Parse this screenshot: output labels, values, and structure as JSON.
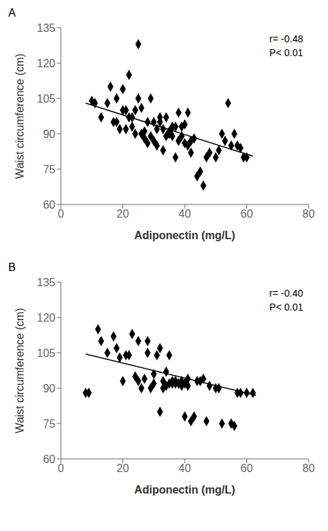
{
  "chart_data": [
    {
      "type": "scatter",
      "title": "A",
      "x_label": "Adiponectin (mg/L)",
      "y_label": "Waist circumference (cm)",
      "annotations": [
        "r= -0.48",
        "P< 0.01"
      ],
      "series": [
        {
          "type": "scatter",
          "marker": "diamond",
          "color": "#000000",
          "x": [
            10,
            11,
            13,
            15,
            16,
            17,
            18,
            18,
            19,
            20,
            20,
            21,
            21,
            22,
            22,
            23,
            23,
            24,
            24,
            25,
            25,
            26,
            26,
            27,
            27,
            28,
            28,
            29,
            29,
            30,
            30,
            31,
            31,
            32,
            32,
            33,
            33,
            34,
            34,
            35,
            35,
            36,
            36,
            37,
            37,
            38,
            38,
            39,
            39,
            40,
            40,
            41,
            41,
            42,
            42,
            43,
            44,
            45,
            46,
            47,
            48,
            50,
            51,
            52,
            53,
            54,
            55,
            56,
            57,
            58,
            59,
            60
          ],
          "values": [
            104,
            103,
            97,
            103,
            110,
            95,
            95,
            105,
            92,
            109,
            100,
            92,
            100,
            97,
            115,
            97,
            93,
            100,
            90,
            128,
            105,
            90,
            101,
            91,
            88,
            95,
            86,
            89,
            105,
            87,
            95,
            92,
            85,
            95,
            97,
            83,
            92,
            89,
            97,
            91,
            90,
            89,
            93,
            80,
            93,
            87,
            99,
            89,
            93,
            94,
            86,
            85,
            99,
            82,
            87,
            88,
            72,
            74,
            68,
            80,
            82,
            80,
            83,
            90,
            87,
            103,
            85,
            90,
            85,
            84,
            80,
            80
          ]
        },
        {
          "type": "line",
          "color": "#000000",
          "x": [
            8,
            62
          ],
          "values": [
            103.0,
            80.5
          ]
        }
      ],
      "xlim": [
        0,
        80
      ],
      "ylim": [
        60,
        135
      ],
      "xticks": [
        0,
        20,
        40,
        60,
        80
      ],
      "yticks": [
        60,
        75,
        90,
        105,
        120,
        135
      ]
    },
    {
      "type": "scatter",
      "title": "B",
      "x_label": "Adiponectin (mg/L)",
      "y_label": "Waist circumference (cm)",
      "annotations": [
        "r= -0.40",
        "P< 0.01"
      ],
      "series": [
        {
          "type": "scatter",
          "marker": "diamond",
          "color": "#000000",
          "x": [
            8,
            9,
            12,
            13,
            15,
            17,
            18,
            19,
            20,
            21,
            22,
            23,
            24,
            25,
            25,
            26,
            27,
            28,
            28,
            29,
            30,
            30,
            31,
            32,
            32,
            33,
            33,
            34,
            34,
            35,
            35,
            36,
            36,
            37,
            37,
            38,
            38,
            39,
            39,
            40,
            40,
            41,
            41,
            42,
            43,
            44,
            45,
            46,
            47,
            48,
            50,
            51,
            52,
            55,
            56,
            57,
            58,
            60,
            62
          ],
          "values": [
            88,
            88,
            115,
            110,
            105,
            112,
            107,
            103,
            93,
            104,
            104,
            113,
            95,
            93,
            110,
            90,
            94,
            105,
            110,
            90,
            92,
            96,
            104,
            80,
            107,
            93,
            90,
            91,
            97,
            92,
            104,
            93,
            92,
            92,
            93,
            92,
            92,
            93,
            91,
            78,
            92,
            94,
            91,
            76,
            78,
            93,
            93,
            94,
            76,
            91,
            90,
            90,
            75,
            75,
            74,
            88,
            88,
            88,
            88
          ]
        },
        {
          "type": "line",
          "color": "#000000",
          "x": [
            8,
            63
          ],
          "values": [
            104.5,
            87.0
          ]
        }
      ],
      "xlim": [
        0,
        80
      ],
      "ylim": [
        60,
        135
      ],
      "xticks": [
        0,
        20,
        40,
        60,
        80
      ],
      "yticks": [
        60,
        75,
        90,
        105,
        120,
        135
      ]
    }
  ]
}
